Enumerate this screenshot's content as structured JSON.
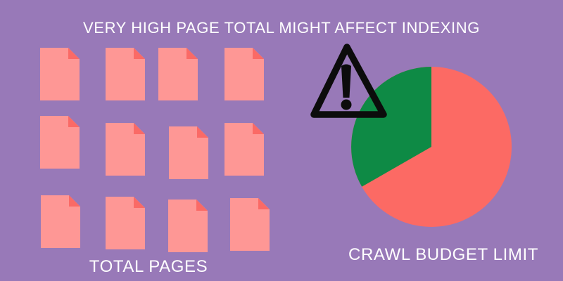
{
  "title": "VERY HIGH PAGE TOTAL MIGHT AFFECT INDEXING",
  "total_pages": {
    "label": "TOTAL PAGES",
    "icon": "page-icon",
    "count": 12,
    "rows": 3,
    "columns": 4
  },
  "crawl_budget": {
    "label": "CRAWL BUDGET LIMIT",
    "icon": "warning-icon"
  },
  "chart_data": {
    "type": "pie",
    "title": "CRAWL BUDGET LIMIT",
    "legend": "none",
    "annotation": "black warning triangle with exclamation mark overlapping the green slice",
    "slices": [
      {
        "name": "salmon-majority",
        "fraction": 0.667,
        "color": "#fc6a64"
      },
      {
        "name": "green-wedge",
        "fraction": 0.333,
        "color": "#0e8a45"
      }
    ],
    "wedge_start": "12 o'clock, sweeping counterclockwise"
  },
  "colors": {
    "background": "#9879b8",
    "text": "#ffffff",
    "page_body": "#fe9795",
    "page_fold": "#fa6a66",
    "pie_main": "#fc6a64",
    "pie_slice": "#0e8a45",
    "warning": "#0c0c0c"
  }
}
